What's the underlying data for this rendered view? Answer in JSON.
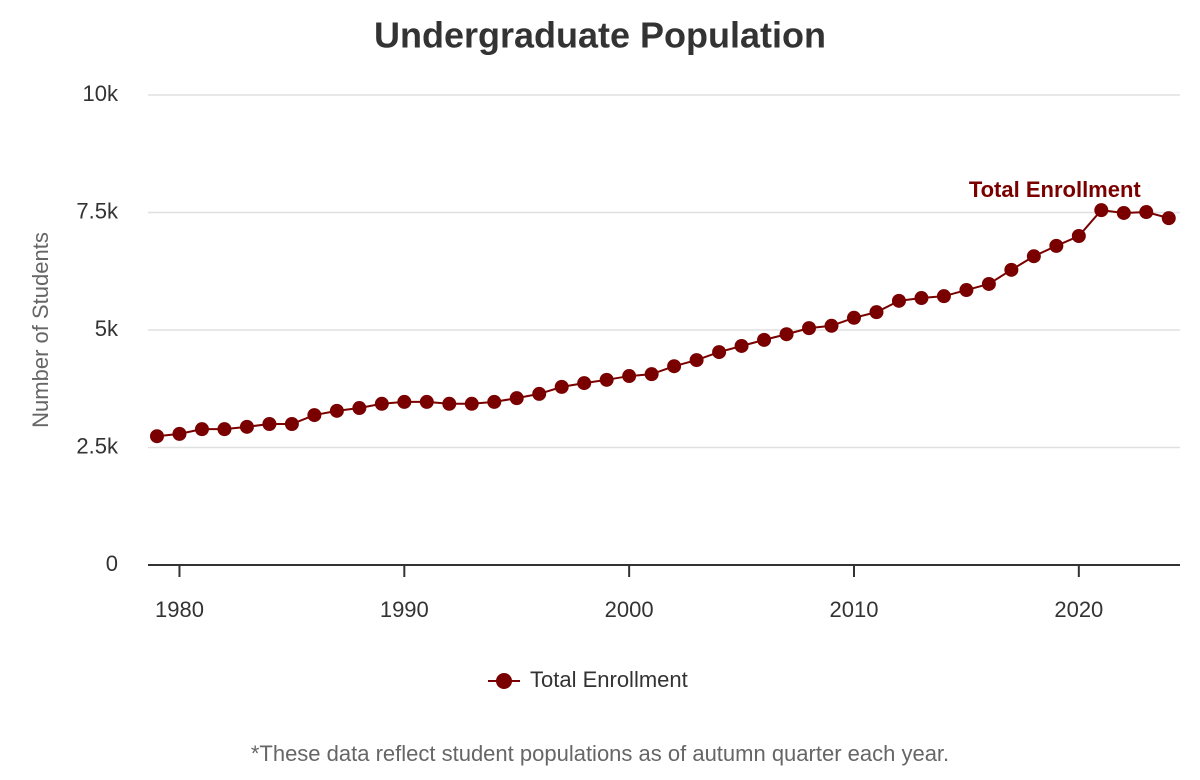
{
  "chart_data": {
    "type": "line",
    "title": "Undergraduate Population",
    "y_label": "Number of Students",
    "note": "*These data reflect student populations as of autumn quarter each year.",
    "x": [
      1979,
      1980,
      1981,
      1982,
      1983,
      1984,
      1985,
      1986,
      1987,
      1988,
      1989,
      1990,
      1991,
      1992,
      1993,
      1994,
      1995,
      1996,
      1997,
      1998,
      1999,
      2000,
      2001,
      2002,
      2003,
      2004,
      2005,
      2006,
      2007,
      2008,
      2009,
      2010,
      2011,
      2012,
      2013,
      2014,
      2015,
      2016,
      2017,
      2018,
      2019,
      2020,
      2021,
      2022,
      2023,
      2024
    ],
    "series": [
      {
        "name": "Total Enrollment",
        "color": "#7a0000",
        "values": [
          2740,
          2790,
          2890,
          2890,
          2940,
          3000,
          3000,
          3190,
          3280,
          3340,
          3430,
          3470,
          3470,
          3430,
          3430,
          3470,
          3550,
          3640,
          3790,
          3870,
          3940,
          4020,
          4060,
          4230,
          4360,
          4530,
          4660,
          4790,
          4910,
          5040,
          5090,
          5260,
          5380,
          5620,
          5680,
          5720,
          5850,
          5980,
          6280,
          6570,
          6790,
          7000,
          7550,
          7490,
          7510,
          7380
        ]
      }
    ],
    "xlim": [
      1978.6,
      2024.5
    ],
    "xticks": [
      1980,
      1990,
      2000,
      2010,
      2020
    ],
    "ylim": [
      0,
      10000
    ],
    "yticks": [
      0,
      {
        "value": 2500,
        "label": "2.5k"
      },
      {
        "value": 5000,
        "label": "5k"
      },
      {
        "value": 7500,
        "label": "7.5k"
      },
      {
        "value": 10000,
        "label": "10k"
      }
    ],
    "grid": true,
    "legend": "bottom"
  }
}
